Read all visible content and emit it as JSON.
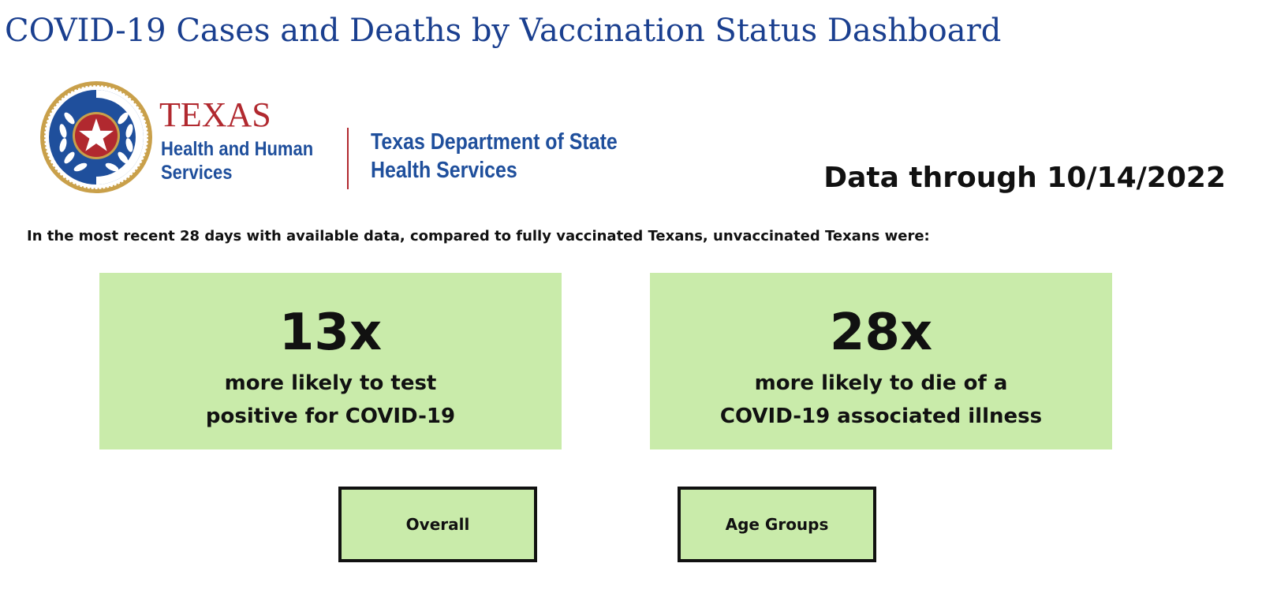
{
  "page_title": "COVID-19 Cases and Deaths by Vaccination Status Dashboard",
  "logo": {
    "hhs_name": "TEXAS",
    "hhs_line1": "Health and Human",
    "hhs_line2": "Services",
    "dshs_line1": "Texas Department of State",
    "dshs_line2": "Health Services",
    "seal_icon": "texas-seal-icon",
    "colors": {
      "red": "#b1292f",
      "blue": "#1f4f9c",
      "gold": "#c9a04a"
    }
  },
  "data_through": "Data through 10/14/2022",
  "intro": "In the most recent 28 days with available data, compared to fully vaccinated Texans, unvaccinated Texans were:",
  "stats": [
    {
      "value": "13x",
      "line1": "more likely to test",
      "line2": "positive for COVID-19"
    },
    {
      "value": "28x",
      "line1": "more likely to die of a",
      "line2": "COVID-19 associated illness"
    }
  ],
  "buttons": {
    "overall": "Overall",
    "age_groups": "Age Groups"
  },
  "colors": {
    "title": "#1a3f8f",
    "card_fill": "#c9ebaa",
    "text": "#111111"
  }
}
